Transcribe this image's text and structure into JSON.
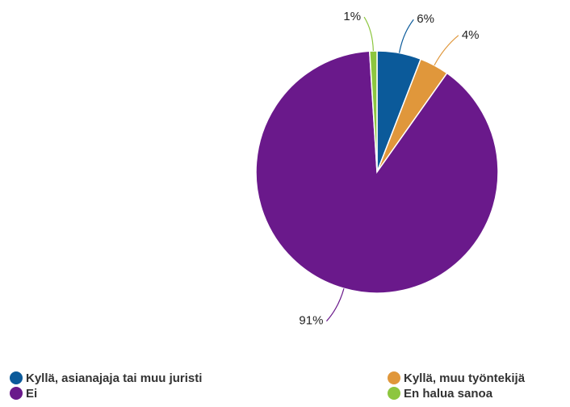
{
  "chart_data": {
    "type": "pie",
    "categories": [
      "Kyllä, asianajaja tai muu juristi",
      "Kyllä, muu työntekijä",
      "Ei",
      "En halua sanoa"
    ],
    "values": [
      6,
      4,
      91,
      1
    ],
    "value_labels": [
      "6%",
      "4%",
      "91%",
      "1%"
    ],
    "colors": [
      "#0b5a9a",
      "#e0973b",
      "#6a198b",
      "#8dc63f"
    ]
  }
}
